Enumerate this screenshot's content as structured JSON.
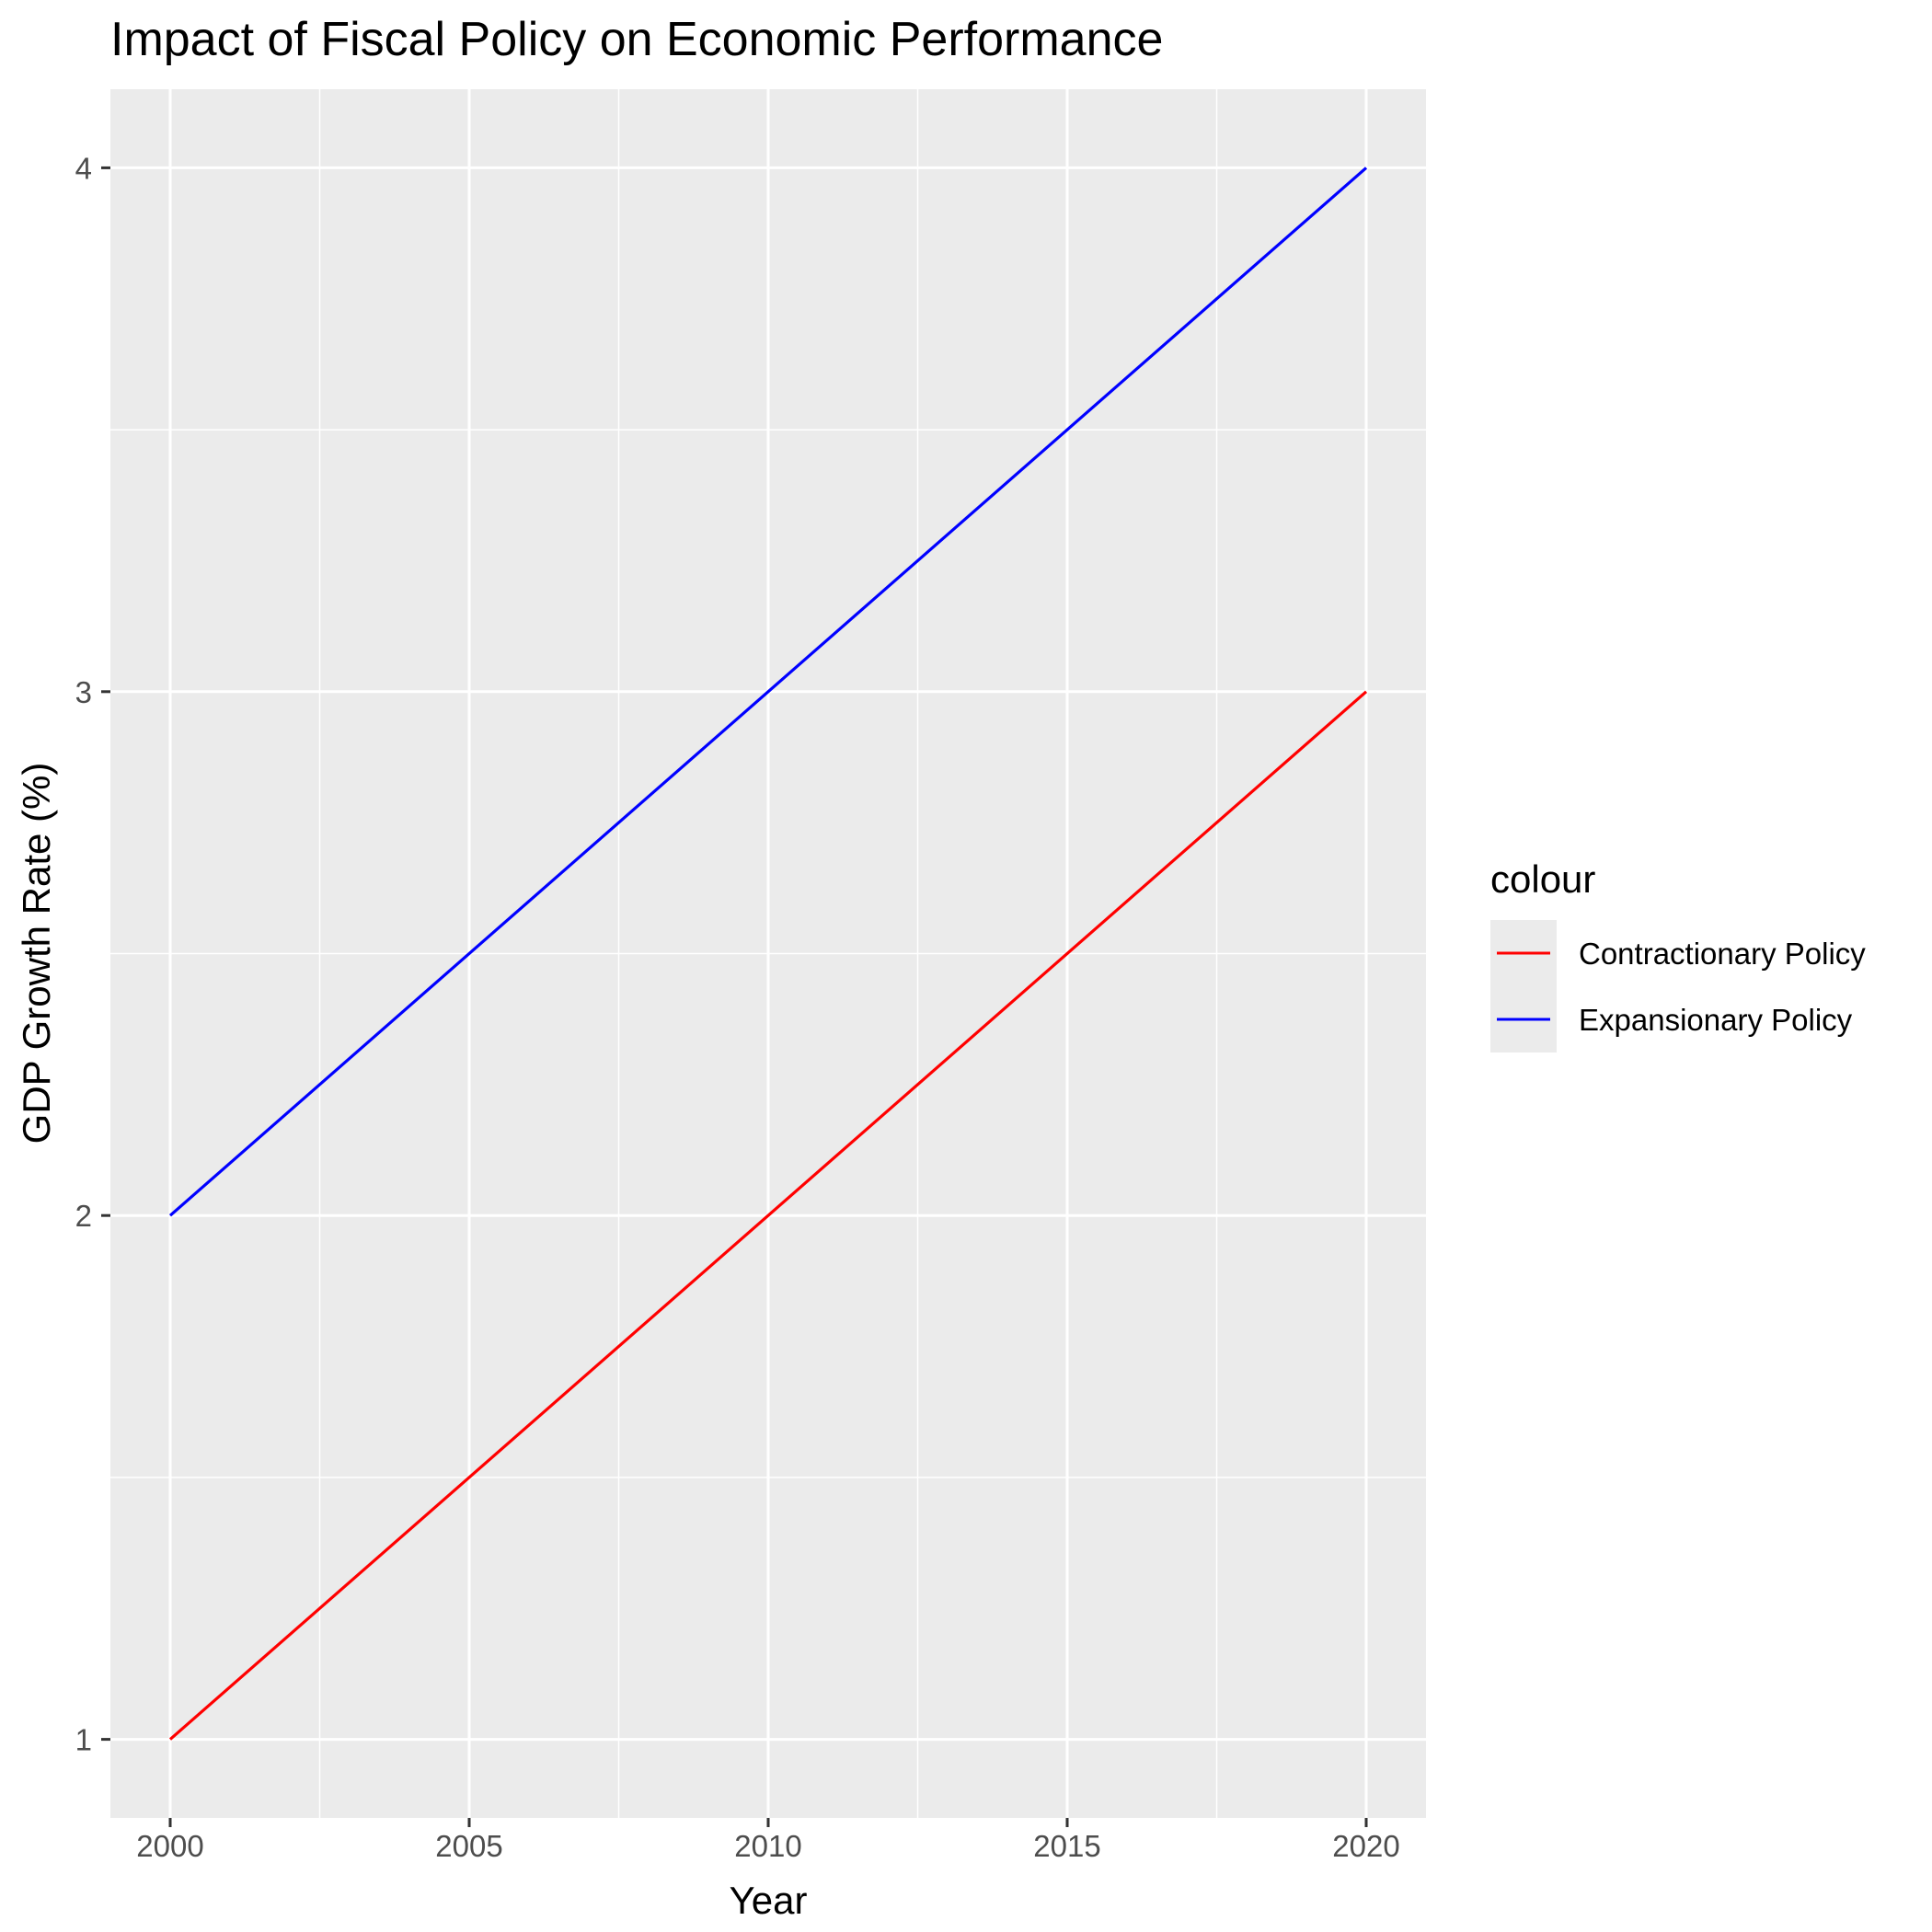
{
  "chart_data": {
    "type": "line",
    "title": "Impact of Fiscal Policy on Economic Performance",
    "xlabel": "Year",
    "ylabel": "GDP Growth Rate (%)",
    "xlim": [
      1999,
      2021
    ],
    "ylim": [
      0.85,
      4.15
    ],
    "x_ticks": [
      2000,
      2005,
      2010,
      2015,
      2020
    ],
    "x_tick_labels": [
      "2000",
      "2005",
      "2010",
      "2015",
      "2020"
    ],
    "y_ticks": [
      1,
      2,
      3,
      4
    ],
    "y_tick_labels": [
      "1",
      "2",
      "3",
      "4"
    ],
    "grid": true,
    "panel_background": "#ebebeb",
    "legend": {
      "title": "colour",
      "placement": "right"
    },
    "series": [
      {
        "name": "Contractionary Policy",
        "color": "#ff0000",
        "x": [
          2000,
          2020
        ],
        "y": [
          1,
          3
        ]
      },
      {
        "name": "Expansionary Policy",
        "color": "#0000ff",
        "x": [
          2000,
          2020
        ],
        "y": [
          2,
          4
        ]
      }
    ]
  }
}
